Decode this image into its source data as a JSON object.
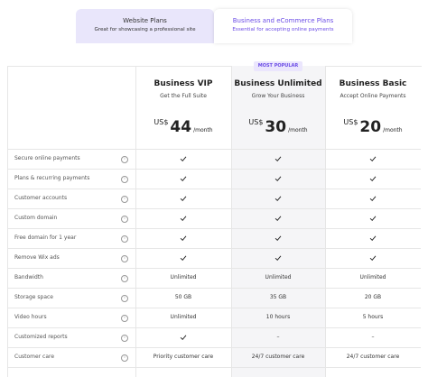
{
  "tabs": [
    {
      "title": "Website Plans",
      "subtitle": "Great for showcasing a professional site",
      "selected": false
    },
    {
      "title": "Business and eCommerce Plans",
      "subtitle": "Essential for accepting online payments",
      "selected": true
    }
  ],
  "badge": "MOST POPULAR",
  "plans": [
    {
      "name": "Business VIP",
      "tagline": "Get the Full Suite",
      "currency": "US$",
      "price": 44,
      "period": "/month",
      "highlight": false
    },
    {
      "name": "Business Unlimited",
      "tagline": "Grow Your Business",
      "currency": "US$",
      "price": 30,
      "period": "/month",
      "highlight": true
    },
    {
      "name": "Business Basic",
      "tagline": "Accept Online Payments",
      "currency": "US$",
      "price": 20,
      "period": "/month",
      "highlight": false
    }
  ],
  "rows": [
    {
      "feature": "Secure online payments",
      "cells": [
        true,
        true,
        true
      ]
    },
    {
      "feature": "Plans & recurring payments",
      "cells": [
        true,
        true,
        true
      ]
    },
    {
      "feature": "Customer accounts",
      "cells": [
        true,
        true,
        true
      ]
    },
    {
      "feature": "Custom domain",
      "cells": [
        true,
        true,
        true
      ]
    },
    {
      "feature": "Free domain for 1 year",
      "cells": [
        true,
        true,
        true
      ]
    },
    {
      "feature": "Remove Wix ads",
      "cells": [
        true,
        true,
        true
      ]
    },
    {
      "feature": "Bandwidth",
      "cells": [
        "Unlimited",
        "Unlimited",
        "Unlimited"
      ]
    },
    {
      "feature": "Storage space",
      "cells": [
        "50 GB",
        "35 GB",
        "20 GB"
      ]
    },
    {
      "feature": "Video hours",
      "cells": [
        "Unlimited",
        "10 hours",
        "5 hours"
      ]
    },
    {
      "feature": "Customized reports",
      "cells": [
        true,
        "–",
        "–"
      ]
    },
    {
      "feature": "Customer care",
      "cells": [
        "Priority customer care",
        "24/7 customer care",
        "24/7 customer care"
      ]
    }
  ]
}
